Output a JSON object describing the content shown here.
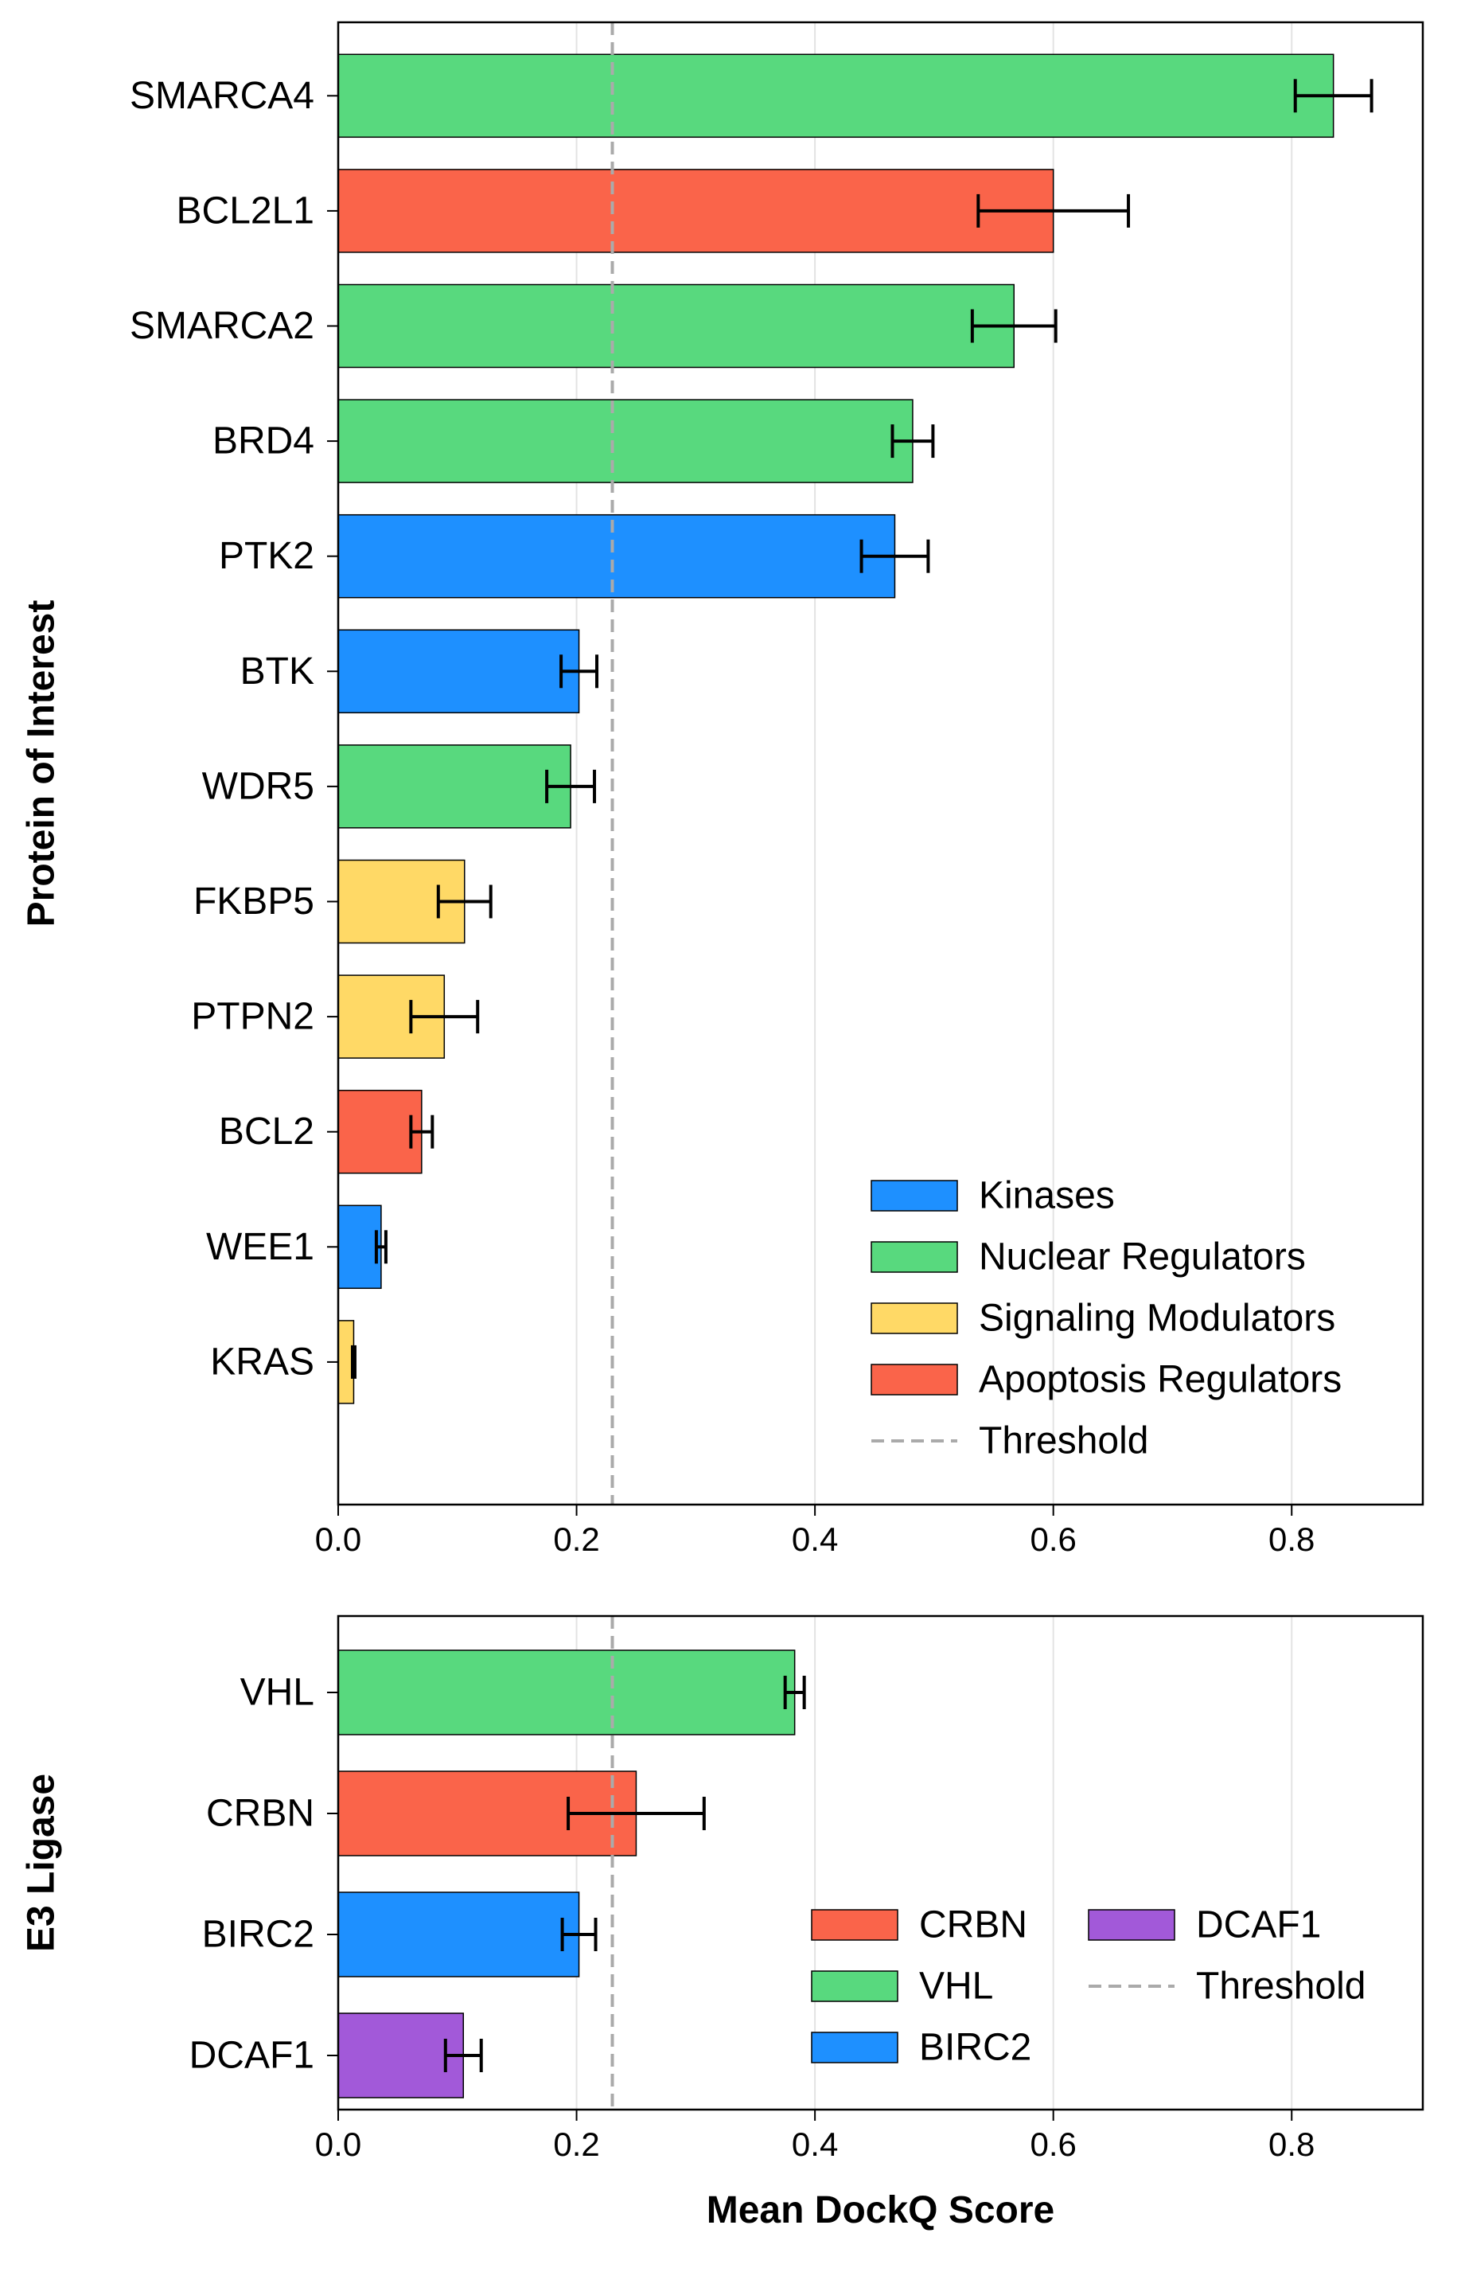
{
  "chart_data": [
    {
      "type": "bar",
      "orientation": "horizontal",
      "ylabel": "Protein of Interest",
      "xlabel": "",
      "xlim": [
        0,
        0.91
      ],
      "xticks": [
        "0.0",
        "0.2",
        "0.4",
        "0.6",
        "0.8"
      ],
      "grid": "vertical",
      "threshold": 0.23,
      "legend_position": "lower-right",
      "legend_columns": 1,
      "legend": [
        {
          "label": "Kinases",
          "color": "#1E90FF",
          "kind": "patch"
        },
        {
          "label": "Nuclear Regulators",
          "color": "#58D97E",
          "kind": "patch"
        },
        {
          "label": "Signaling Modulators",
          "color": "#FFD966",
          "kind": "patch"
        },
        {
          "label": "Apoptosis Regulators",
          "color": "#FA644A",
          "kind": "patch"
        },
        {
          "label": "Threshold",
          "color": "#AAAAAA",
          "kind": "dashed-line"
        }
      ],
      "bars": [
        {
          "label": "SMARCA4",
          "value": 0.835,
          "error": 0.032,
          "color": "#58D97E"
        },
        {
          "label": "BCL2L1",
          "value": 0.6,
          "error": 0.063,
          "color": "#FA644A"
        },
        {
          "label": "SMARCA2",
          "value": 0.567,
          "error": 0.035,
          "color": "#58D97E"
        },
        {
          "label": "BRD4",
          "value": 0.482,
          "error": 0.017,
          "color": "#58D97E"
        },
        {
          "label": "PTK2",
          "value": 0.467,
          "error": 0.028,
          "color": "#1E90FF"
        },
        {
          "label": "BTK",
          "value": 0.202,
          "error": 0.015,
          "color": "#1E90FF"
        },
        {
          "label": "WDR5",
          "value": 0.195,
          "error": 0.02,
          "color": "#58D97E"
        },
        {
          "label": "FKBP5",
          "value": 0.106,
          "error": 0.022,
          "color": "#FFD966"
        },
        {
          "label": "PTPN2",
          "value": 0.089,
          "error": 0.028,
          "color": "#FFD966"
        },
        {
          "label": "BCL2",
          "value": 0.07,
          "error": 0.009,
          "color": "#FA644A"
        },
        {
          "label": "WEE1",
          "value": 0.036,
          "error": 0.004,
          "color": "#1E90FF"
        },
        {
          "label": "KRAS",
          "value": 0.013,
          "error": 0.001,
          "color": "#FFD966"
        }
      ]
    },
    {
      "type": "bar",
      "orientation": "horizontal",
      "ylabel": "E3 Ligase",
      "xlabel": "Mean DockQ Score",
      "xlim": [
        0,
        0.91
      ],
      "xticks": [
        "0.0",
        "0.2",
        "0.4",
        "0.6",
        "0.8"
      ],
      "grid": "vertical",
      "threshold": 0.23,
      "legend_position": "lower-right",
      "legend_columns": 2,
      "legend": [
        {
          "label": "CRBN",
          "color": "#FA644A",
          "kind": "patch"
        },
        {
          "label": "VHL",
          "color": "#58D97E",
          "kind": "patch"
        },
        {
          "label": "BIRC2",
          "color": "#1E90FF",
          "kind": "patch"
        },
        {
          "label": "DCAF1",
          "color": "#A259D9",
          "kind": "patch"
        },
        {
          "label": "Threshold",
          "color": "#AAAAAA",
          "kind": "dashed-line"
        }
      ],
      "bars": [
        {
          "label": "VHL",
          "value": 0.383,
          "error": 0.008,
          "color": "#58D97E"
        },
        {
          "label": "CRBN",
          "value": 0.25,
          "error": 0.057,
          "color": "#FA644A"
        },
        {
          "label": "BIRC2",
          "value": 0.202,
          "error": 0.014,
          "color": "#1E90FF"
        },
        {
          "label": "DCAF1",
          "value": 0.105,
          "error": 0.015,
          "color": "#A259D9"
        }
      ]
    }
  ]
}
